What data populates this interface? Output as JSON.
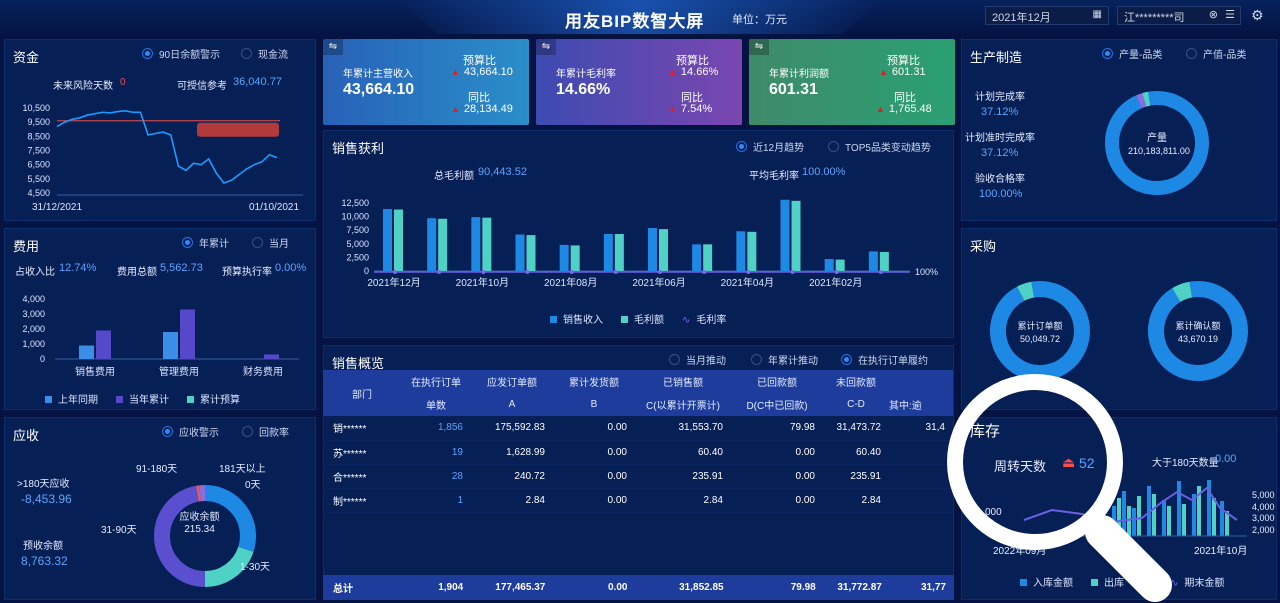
{
  "header": {
    "title": "用友BIP数智大屏",
    "unit": "单位：万元",
    "date": "2021年12月",
    "company": "江*********司"
  },
  "funds": {
    "title": "资金",
    "radio1": "90日余额警示",
    "radio2": "现金流",
    "risk_label": "未来风险天数",
    "risk_value": "0",
    "ref_label": "可授信参考",
    "ref_value": "36,040.77",
    "y_ticks": [
      "10,500",
      "9,500",
      "8,500",
      "7,500",
      "6,500",
      "5,500",
      "4,500"
    ],
    "x_start": "31/12/2021",
    "x_end": "01/10/2021"
  },
  "expense": {
    "title": "费用",
    "radio1": "年累计",
    "radio2": "当月",
    "ratio_label": "占收入比",
    "ratio_value": "12.74%",
    "total_label": "费用总额",
    "total_value": "5,562.73",
    "exec_label": "预算执行率",
    "exec_value": "0.00%",
    "y_ticks": [
      "4,000",
      "3,000",
      "2,000",
      "1,000",
      "0"
    ],
    "legend": [
      "上年同期",
      "当年累计",
      "累计预算"
    ]
  },
  "receivable": {
    "title": "应收",
    "radio1": "应收警示",
    "radio2": "回款率",
    "over180_label": ">180天应收",
    "over180_value": "-8,453.96",
    "pre_label": "预收余额",
    "pre_value": "8,763.32",
    "center_label": "应收余额",
    "center_value": "215.34",
    "seg_labels": [
      "91-180天",
      "181天以上",
      "0天",
      "31-90天",
      "1-30天"
    ]
  },
  "kpis": [
    {
      "title": "年累计主营收入",
      "value": "43,664.10",
      "b_label": "预算比",
      "b_value": "43,664.10",
      "t_label": "同比",
      "t_value": "28,134.49"
    },
    {
      "title": "年累计毛利率",
      "value": "14.66%",
      "b_label": "预算比",
      "b_value": "14.66%",
      "t_label": "同比",
      "t_value": "7.54%"
    },
    {
      "title": "年累计利润额",
      "value": "601.31",
      "b_label": "预算比",
      "b_value": "601.31",
      "t_label": "同比",
      "t_value": "1,765.48"
    }
  ],
  "sales": {
    "title": "销售获利",
    "radio1": "近12月趋势",
    "radio2": "TOP5品类变动趋势",
    "gross_label": "总毛利额",
    "gross_value": "90,443.52",
    "avg_label": "平均毛利率",
    "avg_value": "100.00%",
    "right_tick": "100%",
    "legend": [
      "销售收入",
      "毛利额",
      "毛利率"
    ]
  },
  "overview": {
    "title": "销售概览",
    "radio1": "当月推动",
    "radio2": "年累计推动",
    "radio3": "在执行订单履约",
    "head1": [
      "部门",
      "在执行订单",
      "应发订单额",
      "累计发货额",
      "已销售额",
      "已回款额",
      "未回款额"
    ],
    "head2": [
      "单数",
      "A",
      "B",
      "C(以累计开票计)",
      "D(C中已回款)",
      "C-D",
      "其中:逾"
    ],
    "rows": [
      [
        "销******",
        "1,856",
        "175,592.83",
        "0.00",
        "31,553.70",
        "79.98",
        "31,473.72",
        "31,4"
      ],
      [
        "苏******",
        "19",
        "1,628.99",
        "0.00",
        "60.40",
        "0.00",
        "60.40",
        ""
      ],
      [
        "合******",
        "28",
        "240.72",
        "0.00",
        "235.91",
        "0.00",
        "235.91",
        ""
      ],
      [
        "制******",
        "1",
        "2.84",
        "0.00",
        "2.84",
        "0.00",
        "2.84",
        ""
      ]
    ],
    "total": [
      "总计",
      "1,904",
      "177,465.37",
      "0.00",
      "31,852.85",
      "79.98",
      "31,772.87",
      "31,77"
    ]
  },
  "manufacture": {
    "title": "生产制造",
    "radio1": "产量-品类",
    "radio2": "产值-品类",
    "plan_label": "计划完成率",
    "plan_value": "37.12%",
    "ontime_label": "计划准时完成率",
    "ontime_value": "37.12%",
    "pass_label": "验收合格率",
    "pass_value": "100.00%",
    "donut_label": "产量",
    "donut_value": "210,183,811.00"
  },
  "purchase": {
    "title": "采购",
    "d1_label": "累计订单额",
    "d1_value": "50,049.72",
    "d2_label": "累计确认额",
    "d2_value": "43,670.19"
  },
  "inventory": {
    "title": "库存",
    "turn_label": "周转天数",
    "turn_value": "52",
    "over180_label": "大于180天数量",
    "over180_value": "0.00",
    "y_ticks": [
      "5,000",
      "4,000",
      "3,000",
      "2,000"
    ],
    "x_start": "2022年09月",
    "x_end": "2021年10月",
    "left_tick": "000",
    "legend": [
      "入库金额",
      "出库",
      "期末金额"
    ]
  },
  "chart_data": [
    {
      "type": "line",
      "title": "资金",
      "x_range": [
        "31/12/2021",
        "01/10/2021"
      ],
      "ylim": [
        4500,
        10500
      ],
      "values": [
        9200,
        9500,
        9700,
        9800,
        10000,
        10100,
        10200,
        10150,
        10250,
        10300,
        10200,
        10200,
        8600,
        8700,
        8800,
        8600,
        6400,
        6100,
        6600,
        6500,
        6900,
        5900,
        5200,
        5400,
        5800,
        6200,
        6500,
        6700,
        7200,
        7000
      ],
      "reference_line": 9600
    },
    {
      "type": "bar",
      "title": "费用",
      "categories": [
        "销售费用",
        "管理费用",
        "财务费用"
      ],
      "series": [
        {
          "name": "上年同期",
          "values": [
            900,
            1800,
            0
          ]
        },
        {
          "name": "当年累计",
          "values": [
            1900,
            3300,
            300
          ]
        },
        {
          "name": "累计预算",
          "values": [
            0,
            0,
            0
          ]
        }
      ]
    },
    {
      "type": "pie",
      "title": "应收",
      "labels": [
        "0天",
        "1-30天",
        "31-90天",
        "91-180天",
        "181天以上"
      ],
      "values": [
        30,
        20,
        47,
        1,
        2
      ]
    },
    {
      "type": "bar",
      "title": "销售获利",
      "categories": [
        "2021年12月",
        "",
        "2021年10月",
        "",
        "2021年08月",
        "",
        "2021年06月",
        "",
        "2021年04月",
        "",
        "2021年02月",
        ""
      ],
      "ylim": [
        0,
        12500
      ],
      "series": [
        {
          "name": "销售收入",
          "values": [
            11400,
            9700,
            9900,
            6700,
            4800,
            6800,
            7900,
            4900,
            7300,
            13100,
            2200,
            3600
          ]
        },
        {
          "name": "毛利额",
          "values": [
            11300,
            9600,
            9800,
            6600,
            4700,
            6800,
            7700,
            4900,
            7200,
            12900,
            2100,
            3500
          ]
        },
        {
          "name": "毛利率",
          "values": [
            100,
            100,
            100,
            100,
            100,
            100,
            100,
            100,
            100,
            100,
            100,
            100
          ]
        }
      ]
    },
    {
      "type": "pie",
      "title": "产量",
      "values": [
        96,
        2,
        2
      ]
    },
    {
      "type": "pie",
      "title": "累计订单额",
      "values": [
        95,
        5
      ]
    },
    {
      "type": "pie",
      "title": "累计确认额",
      "values": [
        94,
        6
      ]
    }
  ]
}
